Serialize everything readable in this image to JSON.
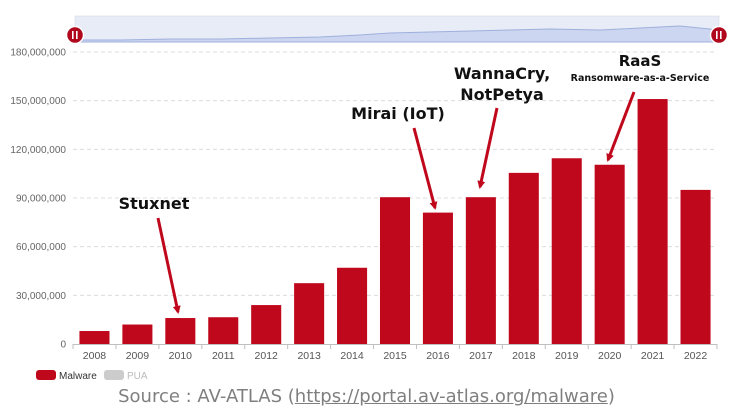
{
  "chart_data": {
    "type": "bar",
    "categories": [
      "2008",
      "2009",
      "2010",
      "2011",
      "2012",
      "2013",
      "2014",
      "2015",
      "2016",
      "2017",
      "2018",
      "2019",
      "2020",
      "2021",
      "2022"
    ],
    "series": [
      {
        "name": "Malware",
        "color": "#c0081c",
        "values": [
          8000000,
          12000000,
          16000000,
          16500000,
          24000000,
          37500000,
          47000000,
          90500000,
          81000000,
          90500000,
          105500000,
          114500000,
          110500000,
          151000000,
          95000000
        ]
      }
    ],
    "yticks": [
      "0",
      "30,000,000",
      "60,000,000",
      "90,000,000",
      "120,000,000",
      "150,000,000",
      "180,000,000"
    ],
    "ytick_values": [
      0,
      30000000,
      60000000,
      90000000,
      120000000,
      150000000,
      180000000
    ],
    "ylim": [
      0,
      180000000
    ],
    "grid": true,
    "legend": {
      "position": "bottom-left",
      "items": [
        {
          "label": "Malware",
          "color": "#c0081c"
        },
        {
          "label": "PUA",
          "color": "#cccccc"
        }
      ]
    },
    "annotations": [
      {
        "lines": [
          "Stuxnet"
        ],
        "category": "2010"
      },
      {
        "lines": [
          "Mirai (IoT)"
        ],
        "category": "2016"
      },
      {
        "lines": [
          "WannaCry,",
          "NotPetya"
        ],
        "category": "2017"
      },
      {
        "lines": [
          "RaaS",
          "Ransomware-as-a-Service"
        ],
        "category": "2020"
      }
    ],
    "navigator": true
  },
  "source": {
    "prefix": "Source : AV-ATLAS (",
    "link": "https://portal.av-atlas.org/malware",
    "suffix": ")"
  }
}
